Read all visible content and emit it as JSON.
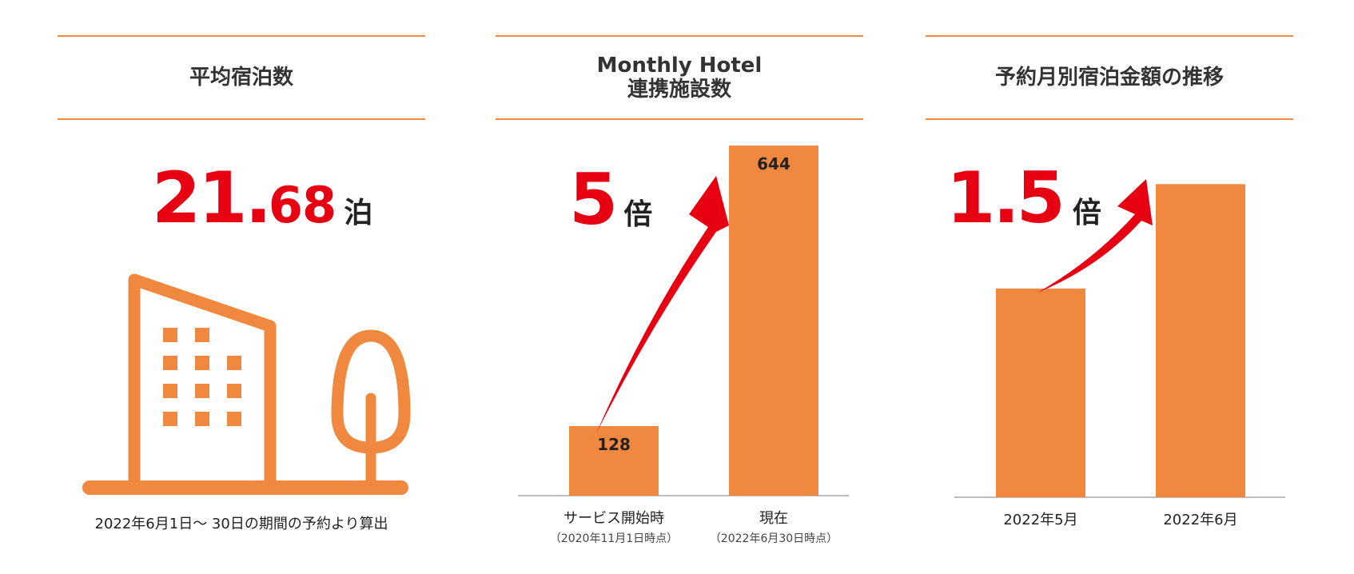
{
  "colors": {
    "accent": "#f0883f",
    "highlight": "#e60012",
    "text": "#333333"
  },
  "panels": [
    {
      "title": "平均宿泊数",
      "value_int": "21",
      "value_dot": ".",
      "value_dec": "68",
      "unit": "泊",
      "icon": "building-and-tree-icon",
      "note": "2022年6月1日〜 30日の期間の予約より算出"
    },
    {
      "title_line1": "Monthly Hotel",
      "title_line2": "連携施設数",
      "value_int": "5",
      "unit": "倍",
      "chart_data": {
        "type": "bar",
        "categories": [
          "サービス開始時",
          "現在"
        ],
        "sublabels": [
          "（2020年11月1日時点）",
          "（2022年6月30日時点）"
        ],
        "values": [
          128,
          644
        ],
        "data_labels": [
          "128",
          "644"
        ],
        "ylim": [
          0,
          700
        ],
        "grid": false
      }
    },
    {
      "title": "予約月別宿泊金額の推移",
      "value_int": "1",
      "value_dot": ".",
      "value_dec": "5",
      "unit": "倍",
      "chart_data": {
        "type": "bar",
        "categories": [
          "2022年5月",
          "2022年6月"
        ],
        "values": [
          1.0,
          1.5
        ],
        "ylim": [
          0,
          1.8
        ],
        "grid": false
      }
    }
  ]
}
